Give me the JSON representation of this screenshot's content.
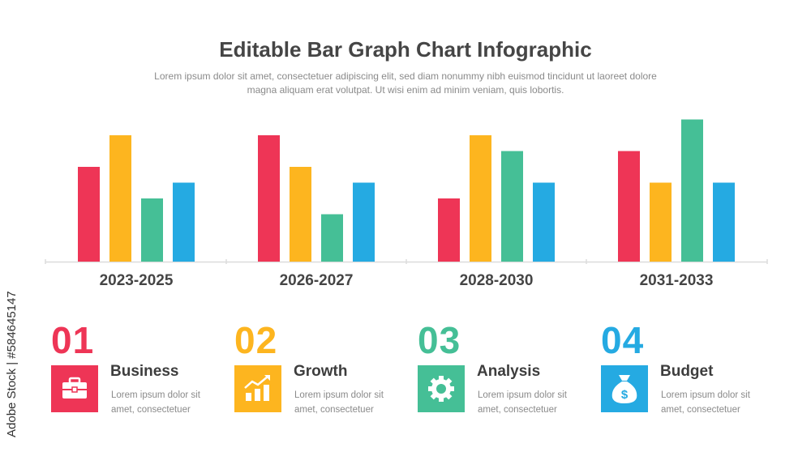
{
  "title": "Editable Bar Graph Chart Infographic",
  "subtitle": "Lorem ipsum dolor sit amet, consectetuer adipiscing elit, sed diam nonummy nibh euismod tincidunt ut laoreet dolore magna aliquam erat volutpat. Ut wisi enim ad minim veniam, quis lobortis.",
  "watermark": "Adobe Stock | #584645147",
  "colors": {
    "red": "#ee3556",
    "yellow": "#fdb51f",
    "green": "#45bf96",
    "blue": "#25aae2",
    "axis": "#dcdcdc"
  },
  "chart_data": {
    "type": "bar",
    "categories": [
      "2023-2025",
      "2026-2027",
      "2028-2030",
      "2031-2033"
    ],
    "series": [
      {
        "color": "#ee3556",
        "values": [
          6,
          8,
          4,
          7
        ]
      },
      {
        "color": "#fdb51f",
        "values": [
          8,
          6,
          8,
          5
        ]
      },
      {
        "color": "#45bf96",
        "values": [
          4,
          3,
          7,
          9
        ]
      },
      {
        "color": "#25aae2",
        "values": [
          5,
          5,
          5,
          5
        ]
      }
    ],
    "ylim": [
      0,
      9
    ],
    "grid": false,
    "legend": "none"
  },
  "cards": [
    {
      "number": "01",
      "title": "Business",
      "desc": "Lorem ipsum dolor sit amet, consectetuer",
      "color": "#ee3556",
      "icon": "briefcase-icon"
    },
    {
      "number": "02",
      "title": "Growth",
      "desc": "Lorem ipsum dolor sit amet, consectetuer",
      "color": "#fdb51f",
      "icon": "growth-chart-icon"
    },
    {
      "number": "03",
      "title": "Analysis",
      "desc": "Lorem ipsum dolor sit amet, consectetuer",
      "color": "#45bf96",
      "icon": "gear-icon"
    },
    {
      "number": "04",
      "title": "Budget",
      "desc": "Lorem ipsum dolor sit amet, consectetuer",
      "color": "#25aae2",
      "icon": "money-bag-icon"
    }
  ]
}
